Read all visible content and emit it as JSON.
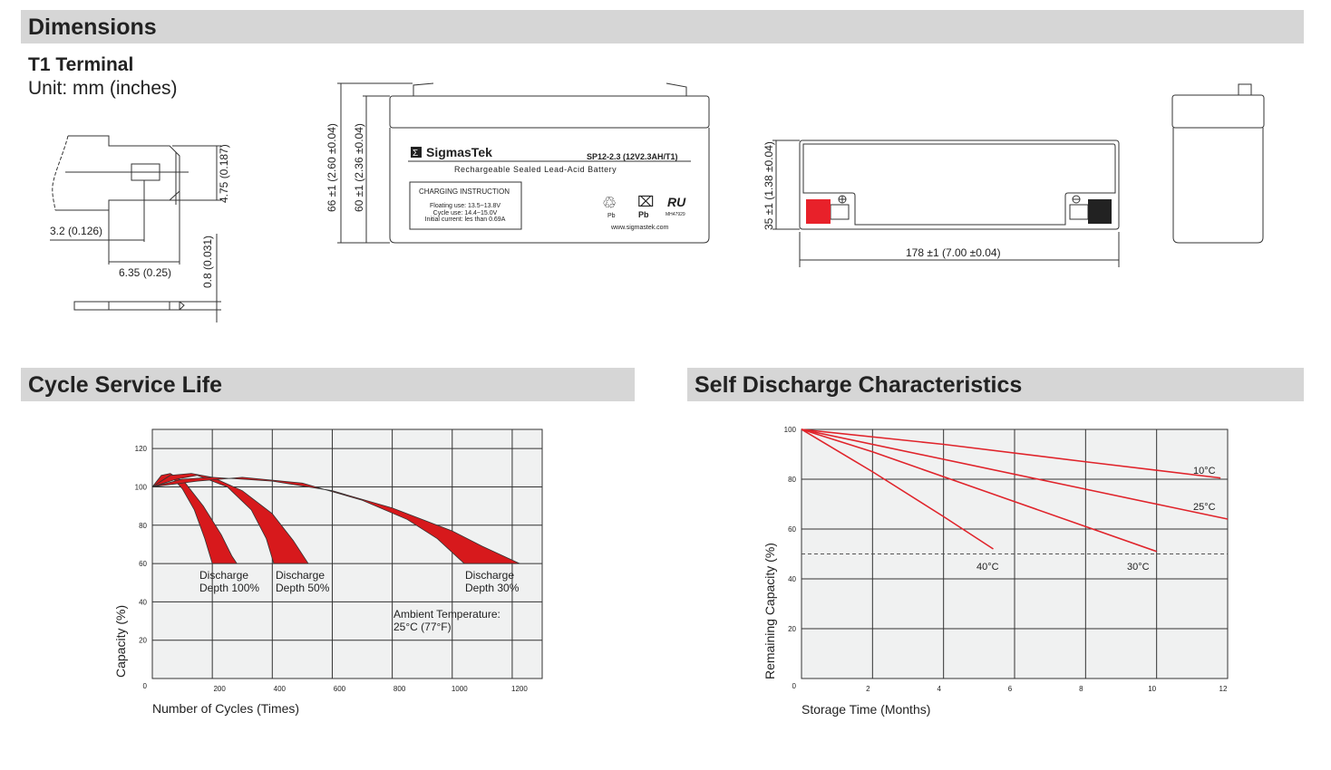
{
  "sections": {
    "dimensions": "Dimensions",
    "cycle_life": "Cycle Service Life",
    "self_discharge": "Self Discharge Characteristics"
  },
  "terminal": {
    "title": "T1 Terminal",
    "unit": "Unit: mm (inches)",
    "dim_height": "4.75 (0.187)",
    "dim_hole": "3.2 (0.126)",
    "dim_width": "6.35 (0.25)",
    "dim_thickness": "0.8 (0.031)"
  },
  "battery": {
    "brand": "SigmasTek",
    "model": "SP12-2.3 (12V2.3AH/T1)",
    "subtitle": "Rechargeable Sealed Lead-Acid Battery",
    "charging_title": "CHARGING INSTRUCTION",
    "floating": "Floating use: 13.5~13.8V",
    "cycle": "Cycle use: 14.4~15.0V",
    "initial": "Initial current: les than 0.69A",
    "recycle_label": "Pb",
    "bin_label": "Pb",
    "ul_code": "MH47929",
    "website": "www.sigmastek.com",
    "dim_total_height": "66 ±1 (2.60 ±0.04)",
    "dim_container_height": "60 ±1 (2.36 ±0.04)",
    "dim_width": "35 ±1 (1.38 ±0.04)",
    "dim_length": "178 ±1 (7.00 ±0.04)",
    "positive_color": "#e8212a",
    "negative_color": "#222222"
  },
  "chart_data": [
    {
      "type": "area",
      "ylabel": "Capacity (%)",
      "xlabel": "Number of Cycles (Times)",
      "xlim": [
        0,
        1300
      ],
      "ylim": [
        0,
        130
      ],
      "xticks": [
        "200",
        "400",
        "600",
        "800",
        "1000",
        "1200"
      ],
      "yticks": [
        "0",
        "20",
        "40",
        "60",
        "80",
        "100",
        "120"
      ],
      "grid": true,
      "band_color": "#d7191c",
      "series": [
        {
          "name": "Discharge Depth 100%",
          "upper": [
            [
              0,
              100
            ],
            [
              30,
              106
            ],
            [
              60,
              107
            ],
            [
              110,
              102
            ],
            [
              170,
              90
            ],
            [
              230,
              75
            ],
            [
              265,
              64
            ],
            [
              282,
              60
            ]
          ],
          "lower": [
            [
              0,
              100
            ],
            [
              40,
              104
            ],
            [
              60,
              106
            ],
            [
              100,
              99
            ],
            [
              140,
              88
            ],
            [
              175,
              73
            ],
            [
              200,
              60
            ]
          ]
        },
        {
          "name": "Discharge Depth 50%",
          "upper": [
            [
              0,
              100
            ],
            [
              60,
              106
            ],
            [
              130,
              107
            ],
            [
              200,
              105
            ],
            [
              300,
              98
            ],
            [
              400,
              86
            ],
            [
              470,
              72
            ],
            [
              520,
              60
            ]
          ],
          "lower": [
            [
              0,
              100
            ],
            [
              80,
              104
            ],
            [
              150,
              106
            ],
            [
              250,
              100
            ],
            [
              330,
              88
            ],
            [
              380,
              73
            ],
            [
              405,
              60
            ]
          ]
        },
        {
          "name": "Discharge Depth 30%",
          "upper": [
            [
              0,
              100
            ],
            [
              100,
              104
            ],
            [
              200,
              105
            ],
            [
              400,
              103
            ],
            [
              600,
              98
            ],
            [
              800,
              89
            ],
            [
              1000,
              77
            ],
            [
              1100,
              69
            ],
            [
              1225,
              60
            ]
          ],
          "lower": [
            [
              0,
              100
            ],
            [
              150,
              103
            ],
            [
              300,
              105
            ],
            [
              500,
              102
            ],
            [
              700,
              93
            ],
            [
              850,
              83
            ],
            [
              950,
              73
            ],
            [
              1040,
              60
            ]
          ]
        }
      ],
      "labels": {
        "d100_1": "Discharge",
        "d100_2": "Depth 100%",
        "d50_1": "Discharge",
        "d50_2": "Depth 50%",
        "d30_1": "Discharge",
        "d30_2": "Depth 30%",
        "ambient_1": "Ambient Temperature:",
        "ambient_2": "25°C (77°F)"
      }
    },
    {
      "type": "line",
      "ylabel": "Remaining Capacity (%)",
      "xlabel": "Storage Time (Months)",
      "xlim": [
        0,
        12
      ],
      "ylim": [
        0,
        100
      ],
      "xticks": [
        "2",
        "4",
        "6",
        "8",
        "10",
        "12"
      ],
      "yticks": [
        "0",
        "20",
        "40",
        "60",
        "80",
        "100"
      ],
      "grid": true,
      "line_color": "#e0242b",
      "reference_line": 50,
      "series": [
        {
          "name": "10°C",
          "points": [
            [
              0,
              100
            ],
            [
              4,
              94
            ],
            [
              8,
              87
            ],
            [
              11.8,
              80.5
            ]
          ]
        },
        {
          "name": "25°C",
          "points": [
            [
              0,
              100
            ],
            [
              4,
              88
            ],
            [
              8,
              76
            ],
            [
              10,
              70
            ],
            [
              12,
              64
            ]
          ]
        },
        {
          "name": "30°C",
          "points": [
            [
              0,
              100
            ],
            [
              2,
              91
            ],
            [
              4,
              81
            ],
            [
              6,
              71
            ],
            [
              8,
              61
            ],
            [
              10,
              51
            ]
          ]
        },
        {
          "name": "40°C",
          "points": [
            [
              0,
              100
            ],
            [
              2,
              83
            ],
            [
              4,
              65
            ],
            [
              5.4,
              52
            ]
          ]
        }
      ]
    }
  ]
}
